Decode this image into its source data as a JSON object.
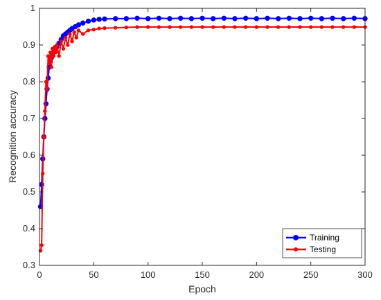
{
  "chart_data": {
    "type": "line",
    "title": "",
    "xlabel": "Epoch",
    "ylabel": "Recognition accuracy",
    "xlim": [
      0,
      300
    ],
    "ylim": [
      0.3,
      1
    ],
    "xticks": [
      0,
      50,
      100,
      150,
      200,
      250,
      300
    ],
    "yticks": [
      0.3,
      0.4,
      0.5,
      0.6,
      0.7,
      0.8,
      0.9,
      1
    ],
    "xtick_labels": [
      "0",
      "50",
      "100",
      "150",
      "200",
      "250",
      "300"
    ],
    "ytick_labels": [
      "0.3",
      "0.4",
      "0.5",
      "0.6",
      "0.7",
      "0.8",
      "0.9",
      "1"
    ],
    "grid": false,
    "legend_position": "bottom-right",
    "series": [
      {
        "name": "Training",
        "color": "#0000ff",
        "marker": "circle",
        "x": [
          1,
          2,
          3,
          4,
          5,
          6,
          7,
          8,
          9,
          10,
          11,
          12,
          14,
          16,
          18,
          20,
          22,
          24,
          26,
          28,
          30,
          33,
          36,
          40,
          45,
          50,
          55,
          60,
          70,
          80,
          90,
          100,
          110,
          120,
          130,
          140,
          150,
          160,
          170,
          180,
          190,
          200,
          210,
          220,
          230,
          240,
          250,
          260,
          270,
          280,
          290,
          300
        ],
        "y": [
          0.46,
          0.52,
          0.59,
          0.65,
          0.7,
          0.74,
          0.78,
          0.81,
          0.84,
          0.855,
          0.865,
          0.875,
          0.885,
          0.895,
          0.905,
          0.915,
          0.925,
          0.93,
          0.935,
          0.94,
          0.945,
          0.95,
          0.955,
          0.96,
          0.965,
          0.968,
          0.97,
          0.971,
          0.972,
          0.972,
          0.973,
          0.972,
          0.973,
          0.972,
          0.973,
          0.972,
          0.973,
          0.972,
          0.973,
          0.972,
          0.973,
          0.972,
          0.973,
          0.972,
          0.973,
          0.972,
          0.973,
          0.972,
          0.973,
          0.972,
          0.973,
          0.972
        ]
      },
      {
        "name": "Testing",
        "color": "#ff0000",
        "marker": "circle",
        "x": [
          1,
          2,
          3,
          4,
          5,
          6,
          7,
          8,
          9,
          10,
          11,
          12,
          13,
          14,
          15,
          16,
          18,
          20,
          22,
          24,
          26,
          28,
          30,
          32,
          34,
          36,
          40,
          45,
          50,
          55,
          60,
          70,
          80,
          90,
          100,
          110,
          120,
          130,
          140,
          150,
          160,
          170,
          180,
          190,
          200,
          210,
          220,
          230,
          240,
          250,
          260,
          270,
          280,
          290,
          300
        ],
        "y": [
          0.34,
          0.355,
          0.55,
          0.65,
          0.72,
          0.8,
          0.78,
          0.87,
          0.85,
          0.88,
          0.84,
          0.89,
          0.87,
          0.895,
          0.88,
          0.9,
          0.87,
          0.91,
          0.89,
          0.92,
          0.9,
          0.93,
          0.91,
          0.935,
          0.92,
          0.94,
          0.93,
          0.94,
          0.942,
          0.945,
          0.946,
          0.947,
          0.948,
          0.949,
          0.949,
          0.949,
          0.949,
          0.949,
          0.949,
          0.949,
          0.949,
          0.949,
          0.949,
          0.949,
          0.949,
          0.949,
          0.949,
          0.949,
          0.949,
          0.949,
          0.949,
          0.949,
          0.949,
          0.949,
          0.949
        ]
      }
    ]
  }
}
